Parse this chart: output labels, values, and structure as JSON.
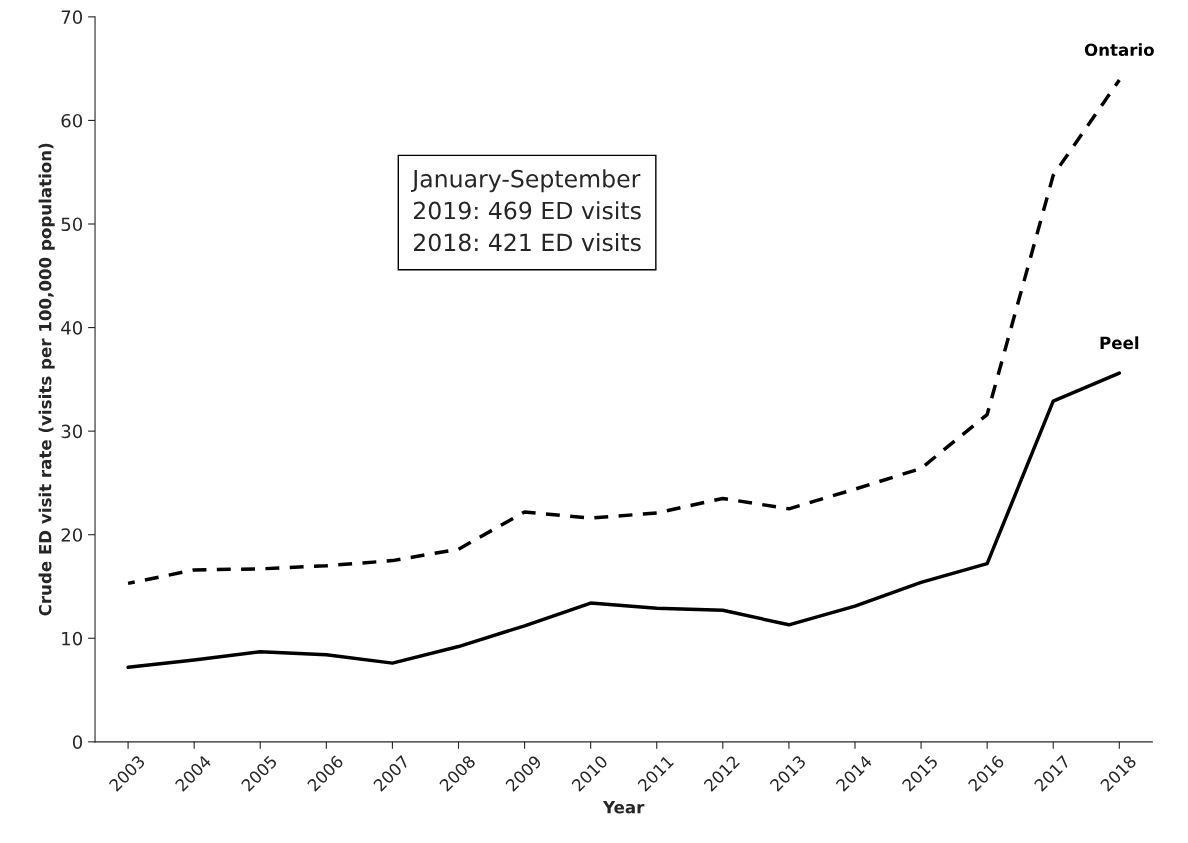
{
  "chart_data": {
    "type": "line",
    "xlabel": "Year",
    "ylabel": "Crude ED visit rate (visits per 100,000 population)",
    "categories": [
      "2003",
      "2004",
      "2005",
      "2006",
      "2007",
      "2008",
      "2009",
      "2010",
      "2011",
      "2012",
      "2013",
      "2014",
      "2015",
      "2016",
      "2017",
      "2018"
    ],
    "series": [
      {
        "name": "Ontario",
        "color": "#000000",
        "line_style": "dashed",
        "values": [
          15.3,
          16.6,
          16.7,
          17.0,
          17.5,
          18.6,
          22.2,
          21.6,
          22.1,
          23.5,
          22.5,
          24.4,
          26.4,
          31.6,
          54.7,
          63.9
        ]
      },
      {
        "name": "Peel",
        "color": "#000000",
        "line_style": "solid",
        "values": [
          7.2,
          7.9,
          8.7,
          8.4,
          7.6,
          9.2,
          11.2,
          13.4,
          12.9,
          12.7,
          11.3,
          13.1,
          15.4,
          17.2,
          32.9,
          35.6
        ]
      }
    ],
    "ylim": [
      0,
      70
    ],
    "yticks": [
      0,
      10,
      20,
      30,
      40,
      50,
      60,
      70
    ],
    "grid": false,
    "legend": false,
    "marker": "none",
    "annotations": [
      "January-September\n2019: 469 ED visits\n2018: 421 ED visits"
    ]
  }
}
